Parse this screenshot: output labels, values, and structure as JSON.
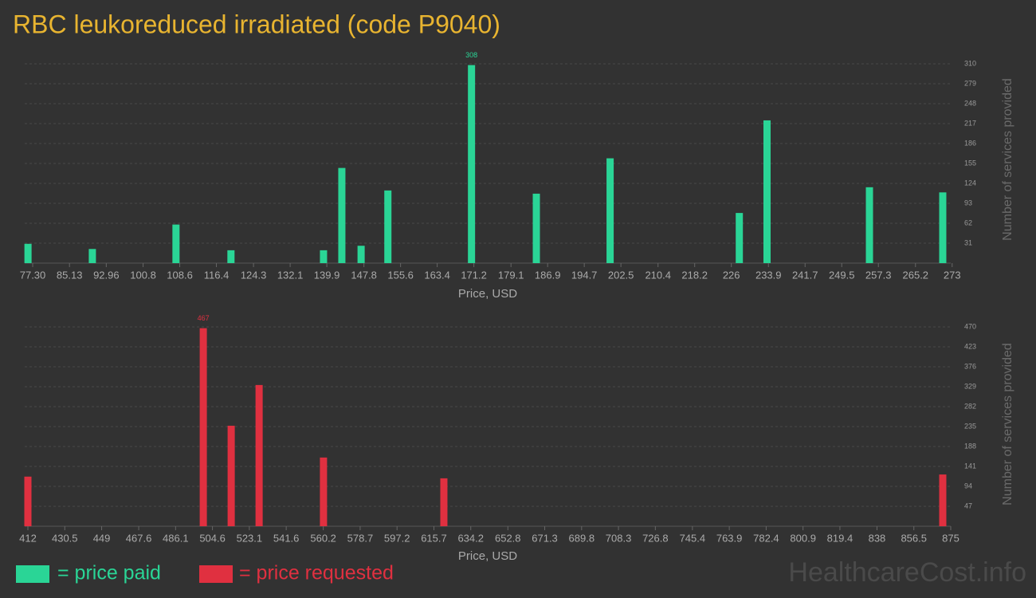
{
  "title": "RBC leukoreduced irradiated (code P9040)",
  "watermark": "HealthcareCost.info",
  "chart_data": [
    {
      "type": "bar",
      "x_label": "Price, USD",
      "y_label": "Number of services provided",
      "series": [
        {
          "name": "= price paid",
          "color": "#2ad596",
          "x": [
            76.3,
            90.0,
            107.8,
            119.5,
            139.2,
            143.1,
            147.2,
            152.9,
            170.7,
            184.5,
            200.2,
            227.7,
            233.6,
            255.4,
            271.0
          ],
          "values": [
            30,
            22,
            60,
            20,
            20,
            148,
            27,
            113,
            308,
            108,
            163,
            78,
            222,
            118,
            110
          ]
        }
      ],
      "xlim": [
        75.6,
        272.7
      ],
      "xticks": [
        {
          "value": 77.3,
          "label": "77.30"
        },
        85.13,
        92.96,
        100.8,
        108.6,
        116.4,
        124.3,
        132.1,
        139.9,
        147.8,
        155.6,
        163.4,
        171.2,
        179.1,
        186.9,
        194.7,
        202.5,
        210.4,
        218.2,
        226,
        233.9,
        241.7,
        249.5,
        257.3,
        265.2,
        273
      ],
      "ylim": [
        0,
        310
      ],
      "yticks": [
        31,
        62,
        93,
        124,
        155,
        186,
        217,
        248,
        279,
        310
      ],
      "grid": true
    },
    {
      "type": "bar",
      "x_label": "Price, USD",
      "y_label": "Number of services provided",
      "series": [
        {
          "name": "= price requested",
          "color": "#e03040",
          "x": [
            412,
            500.0,
            514.0,
            528.0,
            560.3,
            620.7,
            871.0
          ],
          "values": [
            117,
            467,
            237,
            333,
            162,
            113,
            122
          ]
        }
      ],
      "xlim": [
        410.4,
        875
      ],
      "xticks": [
        412,
        430.5,
        449,
        467.6,
        486.1,
        504.6,
        523.1,
        541.6,
        560.2,
        578.7,
        597.2,
        615.7,
        634.2,
        652.8,
        671.3,
        689.8,
        708.3,
        726.8,
        745.4,
        763.9,
        782.4,
        800.9,
        819.4,
        838,
        856.5,
        875
      ],
      "ylim": [
        0,
        470
      ],
      "yticks": [
        47,
        94,
        141,
        188,
        235,
        282,
        329,
        376,
        423,
        470
      ],
      "grid": true
    }
  ]
}
